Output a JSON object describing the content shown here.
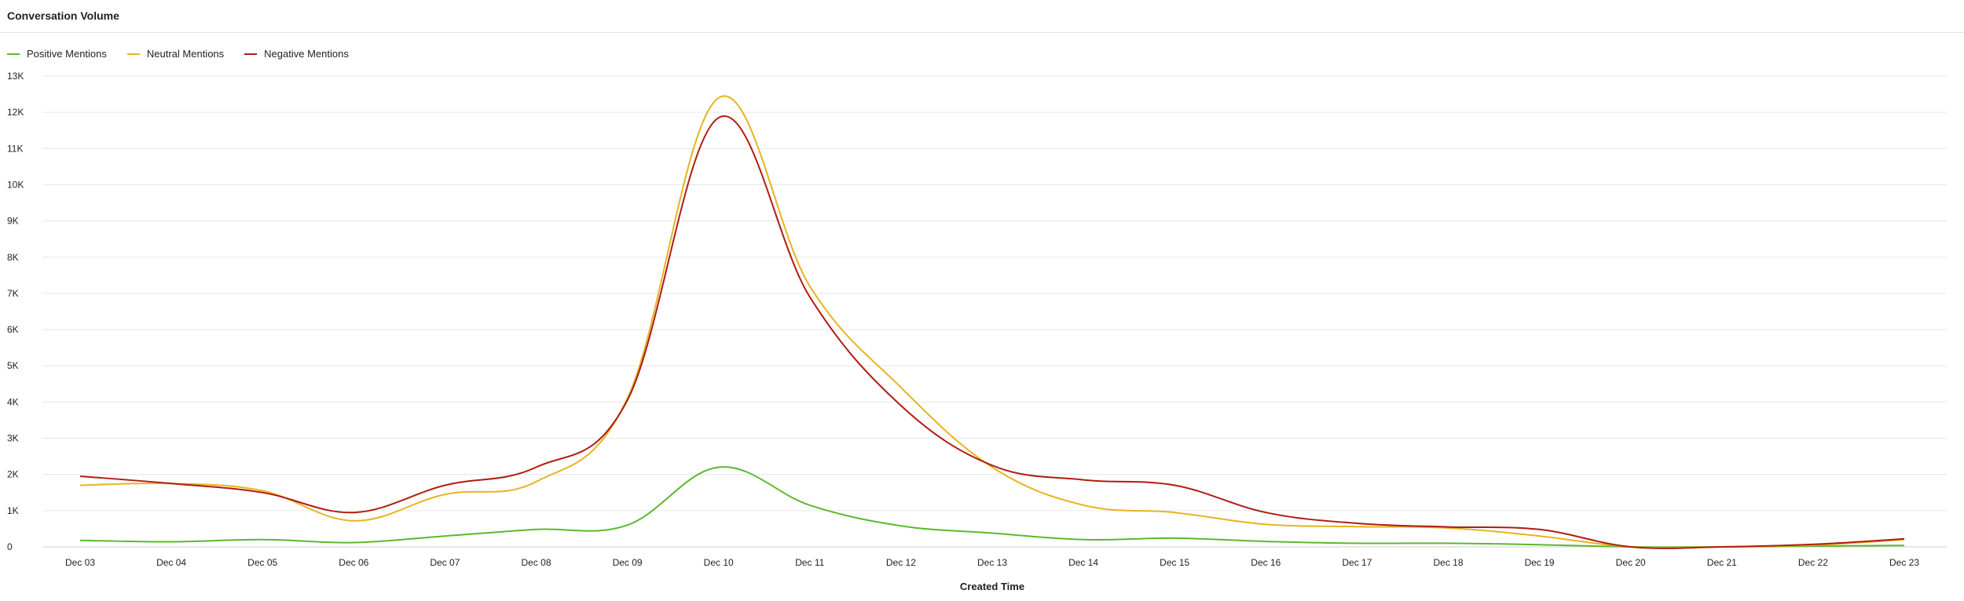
{
  "panel": {
    "title": "Conversation Volume"
  },
  "chart_data": {
    "type": "line",
    "title": "Conversation Volume",
    "xlabel": "Created Time",
    "ylabel": "",
    "categories": [
      "Dec 03",
      "Dec 04",
      "Dec 05",
      "Dec 06",
      "Dec 07",
      "Dec 08",
      "Dec 09",
      "Dec 10",
      "Dec 11",
      "Dec 12",
      "Dec 13",
      "Dec 14",
      "Dec 15",
      "Dec 16",
      "Dec 17",
      "Dec 18",
      "Dec 19",
      "Dec 20",
      "Dec 21",
      "Dec 22",
      "Dec 23"
    ],
    "ylim": [
      0,
      13000
    ],
    "y_ticks": [
      {
        "value": 0,
        "label": "0"
      },
      {
        "value": 1000,
        "label": "1K"
      },
      {
        "value": 2000,
        "label": "2K"
      },
      {
        "value": 3000,
        "label": "3K"
      },
      {
        "value": 4000,
        "label": "4K"
      },
      {
        "value": 5000,
        "label": "5K"
      },
      {
        "value": 6000,
        "label": "6K"
      },
      {
        "value": 7000,
        "label": "7K"
      },
      {
        "value": 8000,
        "label": "8K"
      },
      {
        "value": 9000,
        "label": "9K"
      },
      {
        "value": 10000,
        "label": "10K"
      },
      {
        "value": 11000,
        "label": "11K"
      },
      {
        "value": 12000,
        "label": "12K"
      },
      {
        "value": 13000,
        "label": "13K"
      }
    ],
    "grid": true,
    "legend_position": "top-left",
    "series": [
      {
        "name": "Positive Mentions",
        "color": "#5cb82d",
        "values": [
          180,
          140,
          200,
          120,
          300,
          480,
          600,
          2200,
          1150,
          580,
          380,
          200,
          240,
          150,
          100,
          100,
          60,
          0,
          0,
          20,
          40
        ]
      },
      {
        "name": "Neutral Mentions",
        "color": "#e6b420",
        "values": [
          1700,
          1750,
          1550,
          720,
          1450,
          1800,
          4100,
          12400,
          7200,
          4400,
          2200,
          1150,
          950,
          620,
          560,
          520,
          300,
          0,
          0,
          50,
          200
        ]
      },
      {
        "name": "Negative Mentions",
        "color": "#b01c12",
        "values": [
          1950,
          1750,
          1500,
          950,
          1700,
          2200,
          4050,
          11850,
          6900,
          3900,
          2250,
          1850,
          1700,
          950,
          650,
          550,
          480,
          0,
          0,
          70,
          220
        ]
      }
    ]
  }
}
